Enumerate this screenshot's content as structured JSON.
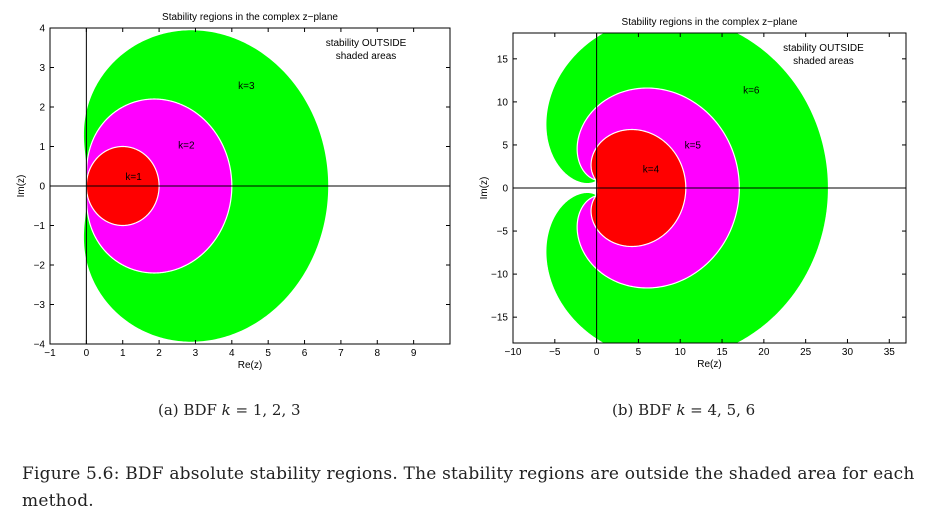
{
  "charts": [
    {
      "id": "a",
      "title": "Stability regions in the complex z−plane",
      "xlabel": "Re(z)",
      "ylabel": "Im(z)",
      "note_line1": "stability OUTSIDE",
      "note_line2": "shaded areas",
      "caption_prefix": "(a) BDF ",
      "caption_var": "k",
      "caption_suffix": " = 1, 2, 3"
    },
    {
      "id": "b",
      "title": "Stability regions in the complex z−plane",
      "xlabel": "Re(z)",
      "ylabel": "Im(z)",
      "note_line1": "stability OUTSIDE",
      "note_line2": "shaded areas",
      "caption_prefix": "(b) BDF ",
      "caption_var": "k",
      "caption_suffix": " = 4, 5, 6"
    }
  ],
  "figure_caption": "Figure 5.6: BDF absolute stability regions. The stability regions are outside the shaded area for each method.",
  "chart_data": [
    {
      "type": "area",
      "title": "Stability regions in the complex z−plane",
      "xlabel": "Re(z)",
      "ylabel": "Im(z)",
      "xlim": [
        -1,
        10
      ],
      "ylim": [
        -4,
        4
      ],
      "xticks": [
        -1,
        0,
        1,
        2,
        3,
        4,
        5,
        6,
        7,
        8,
        9
      ],
      "yticks": [
        -4,
        -3,
        -2,
        -1,
        0,
        1,
        2,
        3,
        4
      ],
      "series": [
        {
          "name": "k=3",
          "method_order": 3,
          "color": "#00ff00",
          "label_at": [
            4.4,
            2.45
          ]
        },
        {
          "name": "k=2",
          "method_order": 2,
          "color": "#ff00ff",
          "label_at": [
            2.75,
            0.95
          ]
        },
        {
          "name": "k=1",
          "method_order": 1,
          "color": "#ff0000",
          "label_at": [
            1.3,
            0.15
          ]
        }
      ],
      "annotation": "stability OUTSIDE shaded areas",
      "grid": false
    },
    {
      "type": "area",
      "title": "Stability regions in the complex z−plane",
      "xlabel": "Re(z)",
      "ylabel": "Im(z)",
      "xlim": [
        -10,
        37
      ],
      "ylim": [
        -18,
        18
      ],
      "xticks": [
        -10,
        -5,
        0,
        5,
        10,
        15,
        20,
        25,
        30,
        35
      ],
      "yticks": [
        -15,
        -10,
        -5,
        0,
        5,
        10,
        15
      ],
      "series": [
        {
          "name": "k=6",
          "method_order": 6,
          "color": "#00ff00",
          "label_at": [
            18.5,
            11
          ]
        },
        {
          "name": "k=5",
          "method_order": 5,
          "color": "#ff00ff",
          "label_at": [
            11.5,
            4.6
          ]
        },
        {
          "name": "k=4",
          "method_order": 4,
          "color": "#ff0000",
          "label_at": [
            6.5,
            1.8
          ]
        }
      ],
      "annotation": "stability OUTSIDE shaded areas",
      "grid": false
    }
  ]
}
